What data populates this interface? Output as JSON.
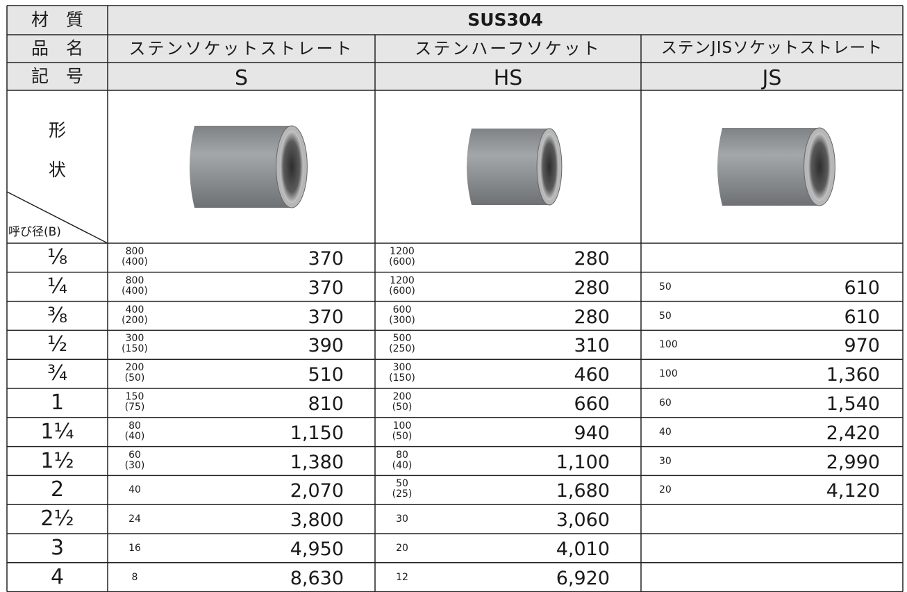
{
  "header": {
    "material_label": "材　質",
    "material": "SUS304",
    "name_label": "品　名",
    "names": [
      "ステンソケットストレート",
      "ステンハーフソケット",
      "ステンJISソケットストレート"
    ],
    "code_label": "記　号",
    "codes": [
      "S",
      "HS",
      "JS"
    ],
    "shape_label": [
      "形",
      "状"
    ],
    "size_label": "呼び径(B)"
  },
  "table": {
    "rows": [
      {
        "size": "⅛",
        "cells": [
          {
            "qty": "800",
            "sub": "(400)",
            "price": "370"
          },
          {
            "qty": "1200",
            "sub": "(600)",
            "price": "280"
          },
          null
        ]
      },
      {
        "size": "¼",
        "cells": [
          {
            "qty": "800",
            "sub": "(400)",
            "price": "370"
          },
          {
            "qty": "1200",
            "sub": "(600)",
            "price": "280"
          },
          {
            "qty": "50",
            "price": "610"
          }
        ]
      },
      {
        "size": "⅜",
        "cells": [
          {
            "qty": "400",
            "sub": "(200)",
            "price": "370"
          },
          {
            "qty": "600",
            "sub": "(300)",
            "price": "280"
          },
          {
            "qty": "50",
            "price": "610"
          }
        ]
      },
      {
        "size": "½",
        "cells": [
          {
            "qty": "300",
            "sub": "(150)",
            "price": "390"
          },
          {
            "qty": "500",
            "sub": "(250)",
            "price": "310"
          },
          {
            "qty": "100",
            "price": "970"
          }
        ]
      },
      {
        "size": "¾",
        "cells": [
          {
            "qty": "200",
            "sub": "(50)",
            "price": "510"
          },
          {
            "qty": "300",
            "sub": "(150)",
            "price": "460"
          },
          {
            "qty": "100",
            "price": "1,360"
          }
        ]
      },
      {
        "size": "1",
        "cells": [
          {
            "qty": "150",
            "sub": "(75)",
            "price": "810"
          },
          {
            "qty": "200",
            "sub": "(50)",
            "price": "660"
          },
          {
            "qty": "60",
            "price": "1,540"
          }
        ]
      },
      {
        "size": "1¼",
        "cells": [
          {
            "qty": "80",
            "sub": "(40)",
            "price": "1,150"
          },
          {
            "qty": "100",
            "sub": "(50)",
            "price": "940"
          },
          {
            "qty": "40",
            "price": "2,420"
          }
        ]
      },
      {
        "size": "1½",
        "cells": [
          {
            "qty": "60",
            "sub": "(30)",
            "price": "1,380"
          },
          {
            "qty": "80",
            "sub": "(40)",
            "price": "1,100"
          },
          {
            "qty": "30",
            "price": "2,990"
          }
        ]
      },
      {
        "size": "2",
        "cells": [
          {
            "qty": "40",
            "price": "2,070"
          },
          {
            "qty": "50",
            "sub": "(25)",
            "price": "1,680"
          },
          {
            "qty": "20",
            "price": "4,120"
          }
        ]
      },
      {
        "size": "2½",
        "cells": [
          {
            "qty": "24",
            "price": "3,800"
          },
          {
            "qty": "30",
            "price": "3,060"
          },
          null
        ]
      },
      {
        "size": "3",
        "cells": [
          {
            "qty": "16",
            "price": "4,950"
          },
          {
            "qty": "20",
            "price": "4,010"
          },
          null
        ]
      },
      {
        "size": "4",
        "cells": [
          {
            "qty": "8",
            "price": "8,630"
          },
          {
            "qty": "12",
            "price": "6,920"
          },
          null
        ]
      }
    ]
  }
}
